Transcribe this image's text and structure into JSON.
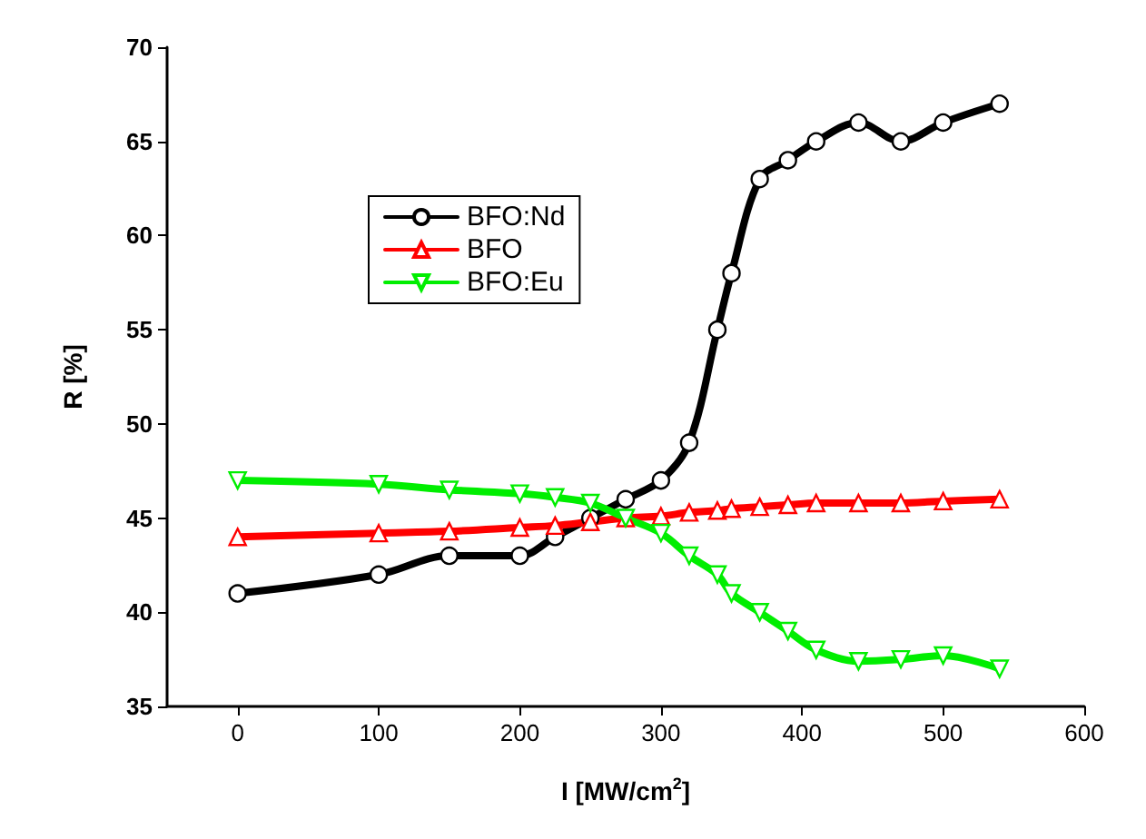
{
  "chart_data": {
    "type": "line",
    "xlabel": "I [MW/cm$^{2}$]",
    "ylabel": "R [%]",
    "x": [
      0,
      100,
      150,
      200,
      225,
      250,
      275,
      300,
      320,
      340,
      350,
      370,
      390,
      410,
      440,
      470,
      500,
      540
    ],
    "series": [
      {
        "name": "BFO:Nd",
        "color": "#000000",
        "marker": "circle",
        "values": [
          41,
          42,
          43,
          43,
          44,
          45,
          46,
          47,
          49,
          55,
          58,
          63,
          64,
          65,
          66,
          65,
          66,
          67
        ]
      },
      {
        "name": "BFO",
        "color": "#ff0000",
        "marker": "triangle",
        "values": [
          44,
          44.2,
          44.3,
          44.5,
          44.6,
          44.8,
          45,
          45.1,
          45.3,
          45.4,
          45.5,
          45.6,
          45.7,
          45.8,
          45.8,
          45.8,
          45.9,
          46
        ]
      },
      {
        "name": "BFO:Eu",
        "color": "#00ee00",
        "marker": "triangle-down",
        "values": [
          47,
          46.8,
          46.5,
          46.3,
          46.1,
          45.8,
          45,
          44.2,
          43,
          42,
          41,
          40,
          39,
          38,
          37.4,
          37.5,
          37.7,
          37
        ]
      }
    ],
    "xlim": [
      -50,
      600
    ],
    "xticks": [
      0,
      100,
      200,
      300,
      400,
      500,
      600
    ],
    "ylim": [
      35,
      70
    ],
    "yticks": [
      35,
      40,
      45,
      50,
      55,
      60,
      65,
      70
    ],
    "grid": false,
    "legend": "top left",
    "line_style": "solid"
  }
}
